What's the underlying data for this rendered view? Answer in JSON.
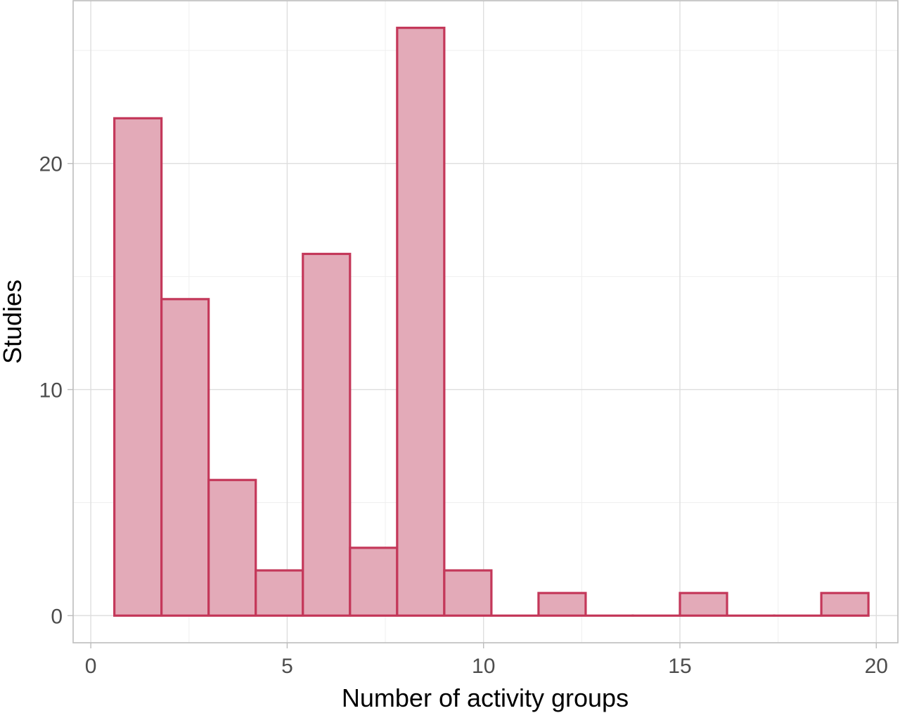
{
  "chart_data": {
    "type": "bar",
    "subtype": "histogram",
    "xlabel": "Number of activity groups",
    "ylabel": "Studies",
    "xlim": [
      -0.45,
      20.55
    ],
    "ylim": [
      -1.2,
      27.2
    ],
    "x_ticks": [
      0,
      5,
      10,
      15,
      20
    ],
    "y_ticks": [
      0,
      10,
      20
    ],
    "grid": true,
    "bin_width": 1.2,
    "bins": [
      {
        "x0": 0.6,
        "x1": 1.8,
        "count": 22
      },
      {
        "x0": 1.8,
        "x1": 3.0,
        "count": 14
      },
      {
        "x0": 3.0,
        "x1": 4.2,
        "count": 6
      },
      {
        "x0": 4.2,
        "x1": 5.4,
        "count": 2
      },
      {
        "x0": 5.4,
        "x1": 6.6,
        "count": 16
      },
      {
        "x0": 6.6,
        "x1": 7.8,
        "count": 3
      },
      {
        "x0": 7.8,
        "x1": 9.0,
        "count": 26
      },
      {
        "x0": 9.0,
        "x1": 10.2,
        "count": 2
      },
      {
        "x0": 10.2,
        "x1": 11.4,
        "count": 0
      },
      {
        "x0": 11.4,
        "x1": 12.6,
        "count": 1
      },
      {
        "x0": 12.6,
        "x1": 13.8,
        "count": 0
      },
      {
        "x0": 13.8,
        "x1": 15.0,
        "count": 0
      },
      {
        "x0": 15.0,
        "x1": 16.2,
        "count": 1
      },
      {
        "x0": 16.2,
        "x1": 17.4,
        "count": 0
      },
      {
        "x0": 17.4,
        "x1": 18.6,
        "count": 0
      },
      {
        "x0": 18.6,
        "x1": 19.8,
        "count": 1
      }
    ],
    "colors": {
      "bar_fill": "#e3aab8",
      "bar_stroke": "#c4385a"
    }
  }
}
